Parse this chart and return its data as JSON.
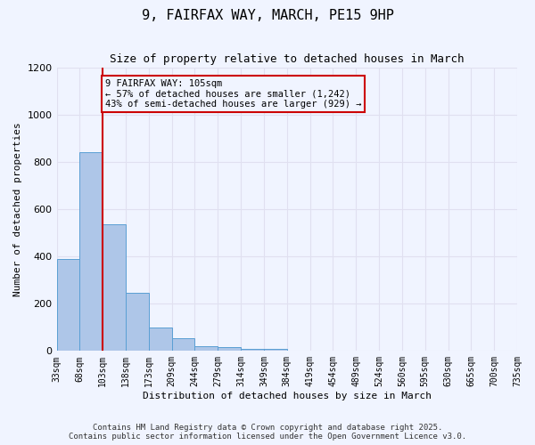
{
  "title": "9, FAIRFAX WAY, MARCH, PE15 9HP",
  "subtitle": "Size of property relative to detached houses in March",
  "xlabel": "Distribution of detached houses by size in March",
  "ylabel": "Number of detached properties",
  "footer_line1": "Contains HM Land Registry data © Crown copyright and database right 2025.",
  "footer_line2": "Contains public sector information licensed under the Open Government Licence v3.0.",
  "bins": [
    "33sqm",
    "68sqm",
    "103sqm",
    "138sqm",
    "173sqm",
    "209sqm",
    "244sqm",
    "279sqm",
    "314sqm",
    "349sqm",
    "384sqm",
    "419sqm",
    "454sqm",
    "489sqm",
    "524sqm",
    "560sqm",
    "595sqm",
    "630sqm",
    "665sqm",
    "700sqm",
    "735sqm"
  ],
  "bar_heights": [
    390,
    840,
    535,
    245,
    100,
    55,
    20,
    15,
    10,
    8,
    0,
    0,
    0,
    0,
    0,
    0,
    0,
    0,
    0,
    0
  ],
  "bar_color": "#aec6e8",
  "bar_edge_color": "#5a9fd4",
  "grid_color": "#e0e0f0",
  "background_color": "#f0f4ff",
  "vline_x": 2,
  "vline_color": "#cc0000",
  "annotation_text": "9 FAIRFAX WAY: 105sqm\n← 57% of detached houses are smaller (1,242)\n43% of semi-detached houses are larger (929) →",
  "annotation_box_color": "#cc0000",
  "ylim": [
    0,
    1200
  ],
  "yticks": [
    0,
    200,
    400,
    600,
    800,
    1000,
    1200
  ]
}
